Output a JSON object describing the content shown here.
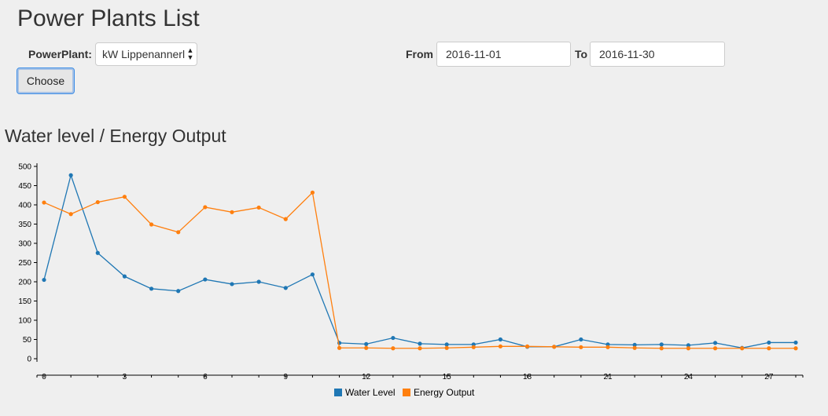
{
  "header": {
    "title": "Power Plants List"
  },
  "filters": {
    "powerplant_label": "PowerPlant:",
    "powerplant_value": "kW Lippenannerl",
    "from_label": "From",
    "from_value": "2016-11-01",
    "to_label": "To",
    "to_value": "2016-11-30",
    "choose_label": "Choose"
  },
  "chart_section": {
    "title": "Water level / Energy Output"
  },
  "chart_data": {
    "type": "line",
    "title": "Water level / Energy Output",
    "xlabel": "",
    "ylabel": "",
    "xlim": [
      0,
      28
    ],
    "ylim": [
      0,
      500
    ],
    "x_ticks": [
      0,
      3,
      6,
      9,
      12,
      15,
      18,
      21,
      24,
      27
    ],
    "y_ticks": [
      0,
      50,
      100,
      150,
      200,
      250,
      300,
      350,
      400,
      450,
      500
    ],
    "grid": false,
    "legend_position": "bottom-center",
    "x": [
      0,
      1,
      2,
      3,
      4,
      5,
      6,
      7,
      8,
      9,
      10,
      11,
      12,
      13,
      14,
      15,
      16,
      17,
      18,
      19,
      20,
      21,
      22,
      23,
      24,
      25,
      26,
      27,
      28
    ],
    "series": [
      {
        "name": "Water Level",
        "color": "#1f77b4",
        "values": [
          205,
          477,
          275,
          214,
          182,
          176,
          206,
          194,
          200,
          184,
          219,
          41,
          38,
          54,
          39,
          37,
          37,
          50,
          31,
          31,
          50,
          37,
          36,
          37,
          35,
          41,
          28,
          42,
          42
        ]
      },
      {
        "name": "Energy Output",
        "color": "#ff7f0e",
        "values": [
          406,
          376,
          407,
          421,
          349,
          329,
          394,
          381,
          393,
          363,
          432,
          28,
          28,
          27,
          27,
          28,
          30,
          32,
          32,
          31,
          30,
          30,
          28,
          27,
          27,
          27,
          27,
          27,
          27
        ]
      }
    ]
  }
}
